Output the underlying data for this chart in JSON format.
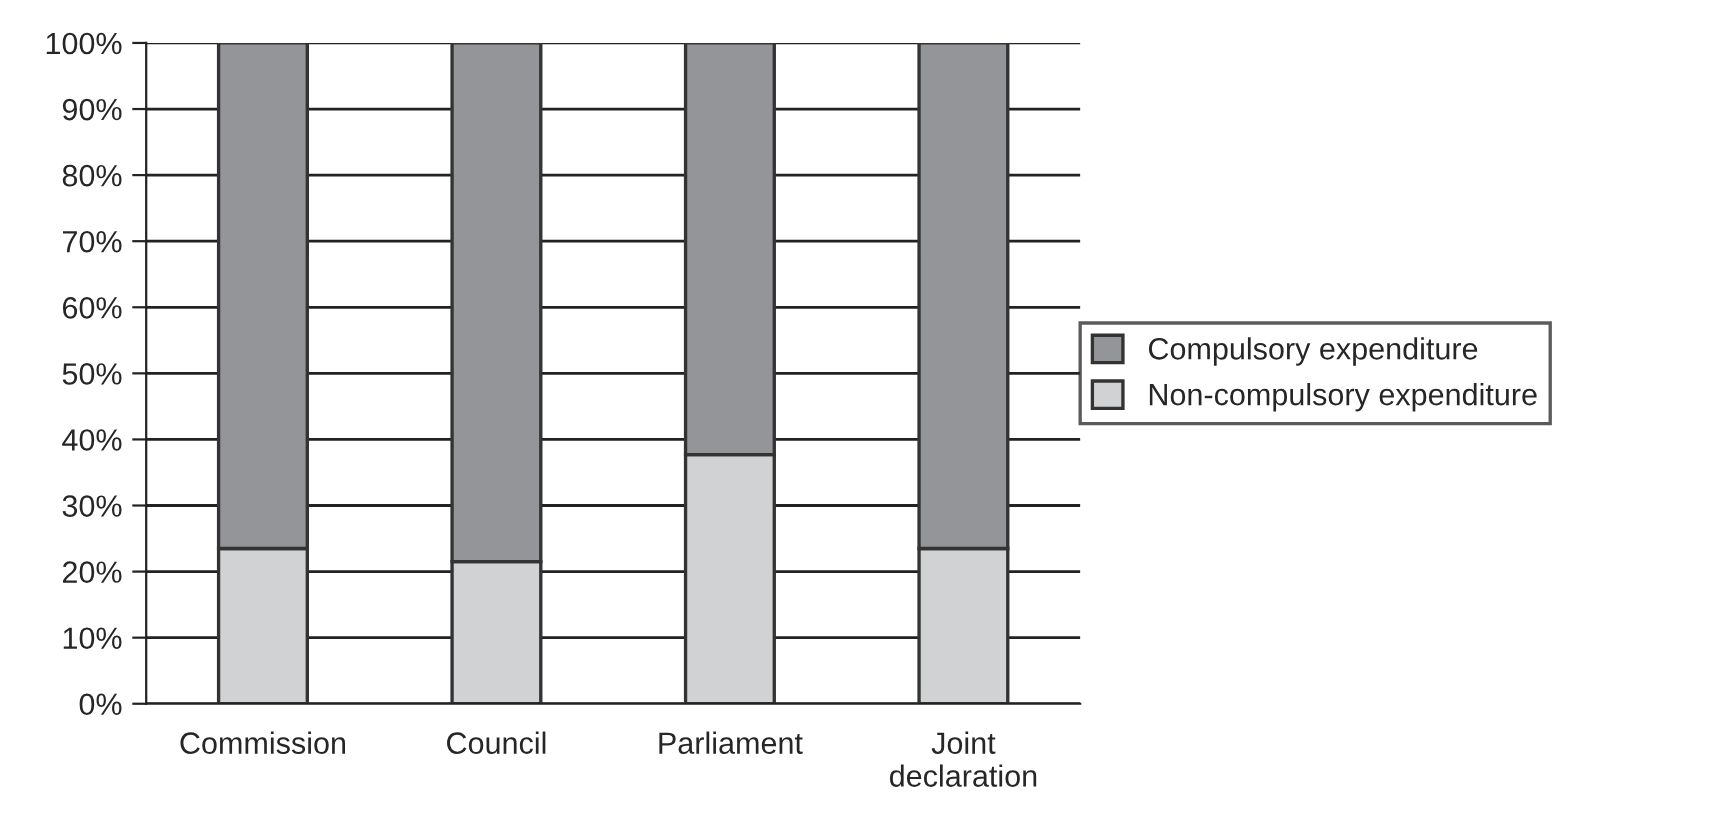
{
  "chart_data": {
    "type": "bar",
    "stacked": true,
    "categories": [
      "Commission",
      "Council",
      "Parliament",
      "Joint\ndeclaration"
    ],
    "series": [
      {
        "name": "Non-compulsory expenditure",
        "color": "#d1d2d4",
        "values": [
          23.5,
          21.5,
          37.7,
          23.5
        ]
      },
      {
        "name": "Compulsory expenditure",
        "color": "#939598",
        "values": [
          76.5,
          78.5,
          62.3,
          76.5
        ]
      }
    ],
    "ylim": [
      0,
      100
    ],
    "yticks": [
      {
        "value": 0,
        "label": "0%"
      },
      {
        "value": 10,
        "label": "10%"
      },
      {
        "value": 20,
        "label": "20%"
      },
      {
        "value": 30,
        "label": "30%"
      },
      {
        "value": 40,
        "label": "40%"
      },
      {
        "value": 50,
        "label": "50%"
      },
      {
        "value": 60,
        "label": "60%"
      },
      {
        "value": 70,
        "label": "70%"
      },
      {
        "value": 80,
        "label": "80%"
      },
      {
        "value": 90,
        "label": "90%"
      },
      {
        "value": 100,
        "label": "100%"
      }
    ],
    "grid": "y",
    "legend": "right"
  }
}
